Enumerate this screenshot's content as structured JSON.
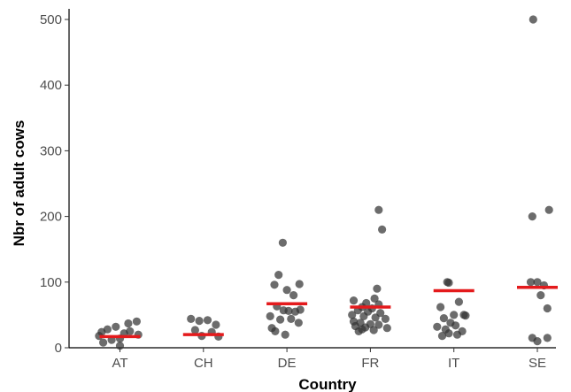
{
  "chart_data": {
    "type": "scatter",
    "title": "",
    "xlabel": "Country",
    "ylabel": "Nbr of adult cows",
    "categories": [
      "AT",
      "CH",
      "DE",
      "FR",
      "IT",
      "SE"
    ],
    "ylim": [
      0,
      505
    ],
    "yticks": [
      0,
      100,
      200,
      300,
      400,
      500
    ],
    "ytick_labels": [
      "0",
      "100",
      "200",
      "300",
      "400",
      "500"
    ],
    "grid": false,
    "legend": "none",
    "colors": {
      "points": "#333333",
      "mean_line": "#e41a1c"
    },
    "means": [
      17,
      20,
      67,
      62,
      87,
      92
    ],
    "points": [
      {
        "category": "AT",
        "offset": -0.2,
        "value": 8
      },
      {
        "category": "AT",
        "offset": -0.1,
        "value": 12
      },
      {
        "category": "AT",
        "offset": -0.25,
        "value": 18
      },
      {
        "category": "AT",
        "offset": 0.0,
        "value": 14
      },
      {
        "category": "AT",
        "offset": 0.05,
        "value": 22
      },
      {
        "category": "AT",
        "offset": 0.12,
        "value": 25
      },
      {
        "category": "AT",
        "offset": 0.2,
        "value": 40
      },
      {
        "category": "AT",
        "offset": -0.05,
        "value": 32
      },
      {
        "category": "AT",
        "offset": -0.15,
        "value": 28
      },
      {
        "category": "AT",
        "offset": 0.1,
        "value": 37
      },
      {
        "category": "AT",
        "offset": 0.22,
        "value": 20
      },
      {
        "category": "AT",
        "offset": -0.22,
        "value": 24
      },
      {
        "category": "AT",
        "offset": 0.0,
        "value": 3
      },
      {
        "category": "CH",
        "offset": -0.15,
        "value": 44
      },
      {
        "category": "CH",
        "offset": -0.05,
        "value": 41
      },
      {
        "category": "CH",
        "offset": 0.05,
        "value": 42
      },
      {
        "category": "CH",
        "offset": 0.15,
        "value": 35
      },
      {
        "category": "CH",
        "offset": -0.1,
        "value": 27
      },
      {
        "category": "CH",
        "offset": 0.1,
        "value": 24
      },
      {
        "category": "CH",
        "offset": 0.18,
        "value": 17
      },
      {
        "category": "CH",
        "offset": -0.02,
        "value": 18
      },
      {
        "category": "DE",
        "offset": -0.05,
        "value": 160
      },
      {
        "category": "DE",
        "offset": -0.1,
        "value": 111
      },
      {
        "category": "DE",
        "offset": 0.15,
        "value": 97
      },
      {
        "category": "DE",
        "offset": -0.15,
        "value": 96
      },
      {
        "category": "DE",
        "offset": 0.0,
        "value": 88
      },
      {
        "category": "DE",
        "offset": 0.08,
        "value": 80
      },
      {
        "category": "DE",
        "offset": 0.16,
        "value": 58
      },
      {
        "category": "DE",
        "offset": -0.12,
        "value": 63
      },
      {
        "category": "DE",
        "offset": -0.04,
        "value": 57
      },
      {
        "category": "DE",
        "offset": 0.02,
        "value": 56
      },
      {
        "category": "DE",
        "offset": 0.1,
        "value": 55
      },
      {
        "category": "DE",
        "offset": -0.2,
        "value": 48
      },
      {
        "category": "DE",
        "offset": -0.08,
        "value": 43
      },
      {
        "category": "DE",
        "offset": 0.05,
        "value": 44
      },
      {
        "category": "DE",
        "offset": 0.14,
        "value": 38
      },
      {
        "category": "DE",
        "offset": -0.18,
        "value": 30
      },
      {
        "category": "DE",
        "offset": -0.14,
        "value": 25
      },
      {
        "category": "DE",
        "offset": -0.02,
        "value": 20
      },
      {
        "category": "FR",
        "offset": 0.1,
        "value": 210
      },
      {
        "category": "FR",
        "offset": 0.14,
        "value": 180
      },
      {
        "category": "FR",
        "offset": 0.08,
        "value": 90
      },
      {
        "category": "FR",
        "offset": 0.05,
        "value": 75
      },
      {
        "category": "FR",
        "offset": -0.2,
        "value": 72
      },
      {
        "category": "FR",
        "offset": -0.05,
        "value": 68
      },
      {
        "category": "FR",
        "offset": 0.1,
        "value": 66
      },
      {
        "category": "FR",
        "offset": -0.1,
        "value": 62
      },
      {
        "category": "FR",
        "offset": 0.02,
        "value": 60
      },
      {
        "category": "FR",
        "offset": -0.15,
        "value": 57
      },
      {
        "category": "FR",
        "offset": -0.03,
        "value": 55
      },
      {
        "category": "FR",
        "offset": 0.12,
        "value": 53
      },
      {
        "category": "FR",
        "offset": -0.22,
        "value": 50
      },
      {
        "category": "FR",
        "offset": -0.08,
        "value": 48
      },
      {
        "category": "FR",
        "offset": 0.06,
        "value": 46
      },
      {
        "category": "FR",
        "offset": 0.18,
        "value": 44
      },
      {
        "category": "FR",
        "offset": -0.2,
        "value": 40
      },
      {
        "category": "FR",
        "offset": -0.12,
        "value": 38
      },
      {
        "category": "FR",
        "offset": 0.0,
        "value": 36
      },
      {
        "category": "FR",
        "offset": 0.1,
        "value": 35
      },
      {
        "category": "FR",
        "offset": -0.18,
        "value": 33
      },
      {
        "category": "FR",
        "offset": -0.06,
        "value": 31
      },
      {
        "category": "FR",
        "offset": 0.2,
        "value": 30
      },
      {
        "category": "FR",
        "offset": -0.1,
        "value": 28
      },
      {
        "category": "FR",
        "offset": 0.04,
        "value": 27
      },
      {
        "category": "FR",
        "offset": -0.14,
        "value": 25
      },
      {
        "category": "IT",
        "offset": -0.06,
        "value": 99
      },
      {
        "category": "IT",
        "offset": -0.08,
        "value": 100
      },
      {
        "category": "IT",
        "offset": 0.06,
        "value": 70
      },
      {
        "category": "IT",
        "offset": -0.16,
        "value": 62
      },
      {
        "category": "IT",
        "offset": 0.12,
        "value": 50
      },
      {
        "category": "IT",
        "offset": 0.14,
        "value": 49
      },
      {
        "category": "IT",
        "offset": 0.0,
        "value": 50
      },
      {
        "category": "IT",
        "offset": -0.12,
        "value": 45
      },
      {
        "category": "IT",
        "offset": -0.04,
        "value": 38
      },
      {
        "category": "IT",
        "offset": 0.02,
        "value": 34
      },
      {
        "category": "IT",
        "offset": -0.2,
        "value": 32
      },
      {
        "category": "IT",
        "offset": -0.1,
        "value": 28
      },
      {
        "category": "IT",
        "offset": 0.1,
        "value": 25
      },
      {
        "category": "IT",
        "offset": -0.06,
        "value": 22
      },
      {
        "category": "IT",
        "offset": 0.04,
        "value": 20
      },
      {
        "category": "IT",
        "offset": -0.14,
        "value": 18
      },
      {
        "category": "SE",
        "offset": -0.05,
        "value": 500
      },
      {
        "category": "SE",
        "offset": 0.14,
        "value": 210
      },
      {
        "category": "SE",
        "offset": -0.06,
        "value": 200
      },
      {
        "category": "SE",
        "offset": -0.08,
        "value": 100
      },
      {
        "category": "SE",
        "offset": 0.0,
        "value": 100
      },
      {
        "category": "SE",
        "offset": 0.08,
        "value": 95
      },
      {
        "category": "SE",
        "offset": 0.04,
        "value": 80
      },
      {
        "category": "SE",
        "offset": 0.12,
        "value": 60
      },
      {
        "category": "SE",
        "offset": -0.06,
        "value": 15
      },
      {
        "category": "SE",
        "offset": 0.0,
        "value": 10
      },
      {
        "category": "SE",
        "offset": 0.12,
        "value": 15
      }
    ]
  }
}
